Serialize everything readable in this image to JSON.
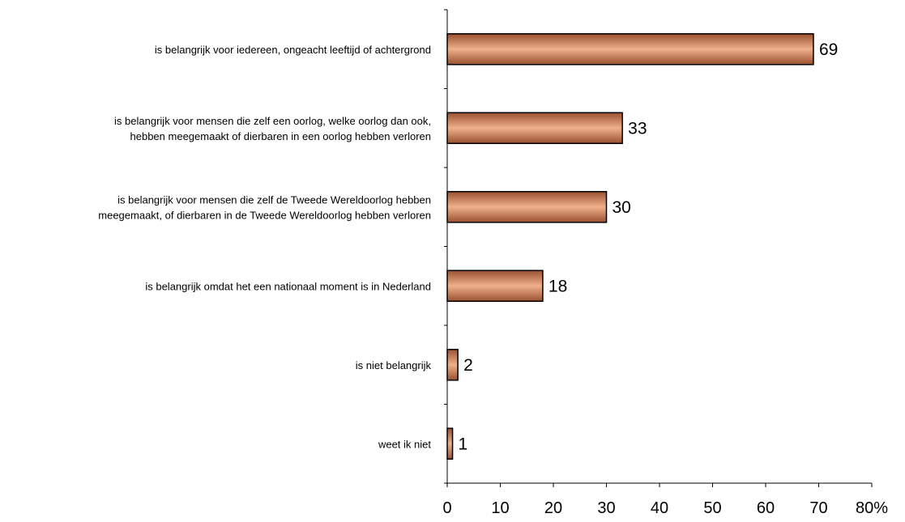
{
  "chart_data": {
    "type": "bar",
    "orientation": "horizontal",
    "categories": [
      [
        "is belangrijk voor iedereen, ongeacht leeftijd of achtergrond"
      ],
      [
        "is belangrijk voor mensen die zelf een oorlog, welke oorlog dan ook,",
        "hebben meegemaakt of dierbaren in een oorlog hebben verloren"
      ],
      [
        "is belangrijk voor mensen die zelf de Tweede Wereldoorlog hebben",
        "meegemaakt, of dierbaren in de Tweede Wereldoorlog hebben verloren"
      ],
      [
        "is belangrijk omdat het een nationaal moment is in Nederland"
      ],
      [
        "is niet belangrijk"
      ],
      [
        "weet ik niet"
      ]
    ],
    "values": [
      69,
      33,
      30,
      18,
      2,
      1
    ],
    "data_labels": [
      "69",
      "33",
      "30",
      "18",
      "2",
      "1"
    ],
    "xlim": [
      0,
      80
    ],
    "xticks": [
      0,
      10,
      20,
      30,
      40,
      50,
      60,
      70,
      80
    ],
    "xtick_labels": [
      "0",
      "10",
      "20",
      "30",
      "40",
      "50",
      "60",
      "70",
      "80%"
    ],
    "grid": false,
    "legend": "none",
    "bar_colors": {
      "dark": "#9a5030",
      "light": "#eeb08a",
      "outline": "#000000"
    }
  }
}
